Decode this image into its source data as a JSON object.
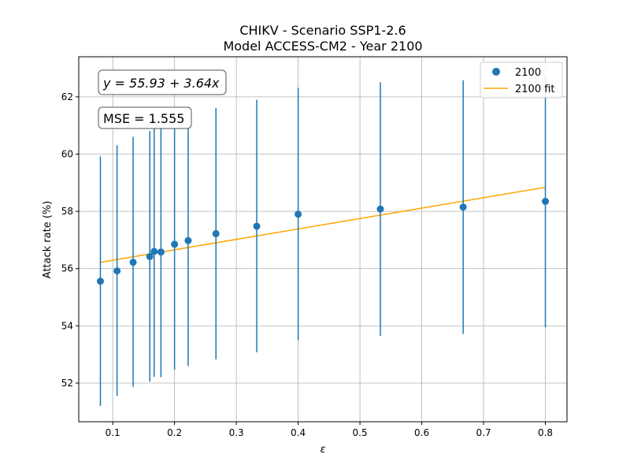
{
  "chart_data": {
    "type": "scatter",
    "title_lines": [
      "CHIKV - Scenario SSP1-2.6",
      "Model ACCESS-CM2 - Year 2100"
    ],
    "xlabel": "ε",
    "ylabel": "Attack rate (%)",
    "xlim": [
      0.045,
      0.835
    ],
    "ylim": [
      50.65,
      63.4
    ],
    "xticks": [
      0.1,
      0.2,
      0.3,
      0.4,
      0.5,
      0.6,
      0.7,
      0.8
    ],
    "xtick_labels": [
      "0.1",
      "0.2",
      "0.3",
      "0.4",
      "0.5",
      "0.6",
      "0.7",
      "0.8"
    ],
    "yticks": [
      52,
      54,
      56,
      58,
      60,
      62
    ],
    "ytick_labels": [
      "52",
      "54",
      "56",
      "58",
      "60",
      "62"
    ],
    "grid": true,
    "legend_position": "top-right",
    "series": [
      {
        "name": "2100",
        "kind": "points_with_errorbars",
        "color": "#1f77b4",
        "points": [
          {
            "x": 0.08,
            "y": 55.56,
            "low": 51.2,
            "high": 59.92
          },
          {
            "x": 0.107,
            "y": 55.92,
            "low": 51.56,
            "high": 60.31
          },
          {
            "x": 0.133,
            "y": 56.22,
            "low": 51.87,
            "high": 60.6
          },
          {
            "x": 0.16,
            "y": 56.42,
            "low": 52.05,
            "high": 60.8
          },
          {
            "x": 0.167,
            "y": 56.6,
            "low": 52.22,
            "high": 60.97
          },
          {
            "x": 0.178,
            "y": 56.58,
            "low": 52.21,
            "high": 60.96
          },
          {
            "x": 0.2,
            "y": 56.85,
            "low": 52.47,
            "high": 61.22
          },
          {
            "x": 0.222,
            "y": 56.98,
            "low": 52.6,
            "high": 61.36
          },
          {
            "x": 0.267,
            "y": 57.22,
            "low": 52.83,
            "high": 61.61
          },
          {
            "x": 0.333,
            "y": 57.48,
            "low": 53.08,
            "high": 61.9
          },
          {
            "x": 0.4,
            "y": 57.9,
            "low": 53.5,
            "high": 62.32
          },
          {
            "x": 0.533,
            "y": 58.08,
            "low": 53.65,
            "high": 62.51
          },
          {
            "x": 0.667,
            "y": 58.15,
            "low": 53.72,
            "high": 62.58
          },
          {
            "x": 0.8,
            "y": 58.35,
            "low": 53.95,
            "high": 62.75
          }
        ]
      },
      {
        "name": "2100 fit",
        "kind": "line",
        "color": "#ffa500",
        "x": [
          0.08,
          0.8
        ],
        "y": [
          56.22,
          58.84
        ]
      }
    ],
    "annotations": {
      "equation": "y = 55.93 + 3.64x",
      "mse": "MSE = 1.555"
    }
  }
}
